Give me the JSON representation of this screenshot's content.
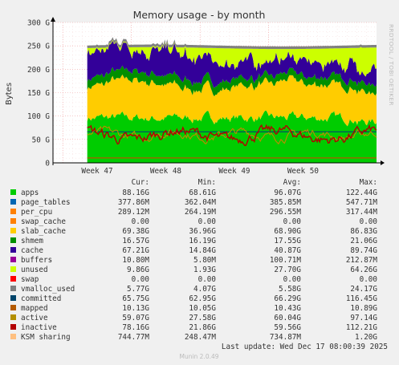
{
  "chart_data": {
    "type": "area",
    "title": "Memory usage - by month",
    "ylabel": "Bytes",
    "side_label": "RRDTOOL / TOBI OETIKER",
    "ylim": [
      0,
      300
    ],
    "y_ticks": [
      "0",
      "50 G",
      "100 G",
      "150 G",
      "200 G",
      "250 G",
      "300 G"
    ],
    "y_tick_values": [
      0,
      50,
      100,
      150,
      200,
      250,
      300
    ],
    "x_ticks": [
      "Week 47",
      "Week 48",
      "Week 49",
      "Week 50"
    ],
    "x_tick_days": [
      4.5,
      11.5,
      18.5,
      25.5
    ],
    "x_range_days": [
      0,
      33
    ],
    "grid": true,
    "table_headers": [
      "Cur:",
      "Min:",
      "Avg:",
      "Max:"
    ],
    "series": [
      {
        "name": "apps",
        "color": "#00cc00",
        "cur": "88.16G",
        "min": "68.61G",
        "avg": "96.07G",
        "max": "122.44G"
      },
      {
        "name": "page_tables",
        "color": "#0066b3",
        "cur": "377.86M",
        "min": "362.04M",
        "avg": "385.85M",
        "max": "547.71M"
      },
      {
        "name": "per_cpu",
        "color": "#ff8000",
        "cur": "289.12M",
        "min": "264.19M",
        "avg": "296.55M",
        "max": "317.44M"
      },
      {
        "name": "swap_cache",
        "color": "#ff8000",
        "cur": "0.00",
        "min": "0.00",
        "avg": "0.00",
        "max": "0.00"
      },
      {
        "name": "slab_cache",
        "color": "#ffcc00",
        "cur": "69.38G",
        "min": "36.96G",
        "avg": "68.90G",
        "max": "86.83G"
      },
      {
        "name": "shmem",
        "color": "#008f00",
        "cur": "16.57G",
        "min": "16.19G",
        "avg": "17.55G",
        "max": "21.06G"
      },
      {
        "name": "cache",
        "color": "#330099",
        "cur": "67.21G",
        "min": "14.84G",
        "avg": "40.87G",
        "max": "89.74G"
      },
      {
        "name": "buffers",
        "color": "#990099",
        "cur": "10.80M",
        "min": "5.80M",
        "avg": "100.71M",
        "max": "212.87M"
      },
      {
        "name": "unused",
        "color": "#ccff00",
        "cur": "9.86G",
        "min": "1.93G",
        "avg": "27.70G",
        "max": "64.26G"
      },
      {
        "name": "swap",
        "color": "#ff0000",
        "cur": "0.00",
        "min": "0.00",
        "avg": "0.00",
        "max": "0.00"
      },
      {
        "name": "vmalloc_used",
        "color": "#808080",
        "cur": "5.77G",
        "min": "4.07G",
        "avg": "5.58G",
        "max": "24.17G"
      },
      {
        "name": "committed",
        "color": "#00456b",
        "cur": "65.75G",
        "min": "62.95G",
        "avg": "66.29G",
        "max": "116.45G"
      },
      {
        "name": "mapped",
        "color": "#b35a00",
        "cur": "10.13G",
        "min": "10.05G",
        "avg": "10.43G",
        "max": "10.89G"
      },
      {
        "name": "active",
        "color": "#b38f00",
        "cur": "59.07G",
        "min": "27.58G",
        "avg": "60.04G",
        "max": "97.14G"
      },
      {
        "name": "inactive",
        "color": "#b30000",
        "cur": "78.16G",
        "min": "21.86G",
        "avg": "59.56G",
        "max": "112.21G"
      },
      {
        "name": "KSM sharing",
        "color": "#ffc080",
        "cur": "744.77M",
        "min": "248.47M",
        "avg": "734.87M",
        "max": "1.20G"
      }
    ],
    "last_update": "Last update: Wed Dec 17 08:00:39 2025",
    "footer": "Munin 2.0.49"
  }
}
